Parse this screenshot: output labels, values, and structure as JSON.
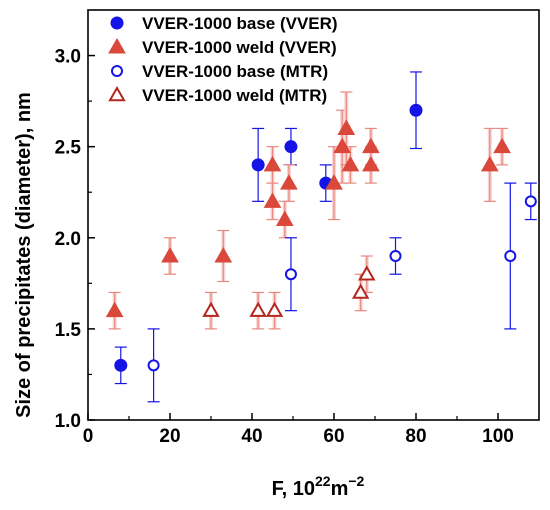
{
  "chart_data": {
    "type": "scatter",
    "xlabel": "F, 10",
    "xlabel_sup": "22",
    "xlabel_unit": "m",
    "xlabel_unit_sup": "−2",
    "ylabel": "Size of precipitates (diameter), nm",
    "xlim": [
      0,
      110
    ],
    "ylim": [
      1.0,
      3.25
    ],
    "xticks": [
      "0",
      "20",
      "40",
      "60",
      "80",
      "100"
    ],
    "xtick_values": [
      0,
      20,
      40,
      60,
      80,
      100
    ],
    "yticks": [
      "1.0",
      "1.5",
      "2.0",
      "2.5",
      "3.0"
    ],
    "ytick_values": [
      1.0,
      1.5,
      2.0,
      2.5,
      3.0
    ],
    "grid": false,
    "legend_position": "top-left",
    "series": [
      {
        "name": "VVER-1000 base (VVER)",
        "marker": "circle-filled",
        "color": "#1414e6",
        "points": [
          {
            "x": 8,
            "y": 1.3,
            "err": 0.1
          },
          {
            "x": 41.5,
            "y": 2.4,
            "err": 0.2
          },
          {
            "x": 49.5,
            "y": 2.5,
            "err": 0.1
          },
          {
            "x": 58,
            "y": 2.3,
            "err": 0.1
          },
          {
            "x": 80,
            "y": 2.7,
            "err": 0.21
          }
        ]
      },
      {
        "name": "VVER-1000 weld (VVER)",
        "marker": "triangle-filled",
        "color": "#d9483a",
        "points": [
          {
            "x": 6.5,
            "y": 1.6,
            "err": 0.1
          },
          {
            "x": 20,
            "y": 1.9,
            "err": 0.1
          },
          {
            "x": 33,
            "y": 1.9,
            "err": 0.14
          },
          {
            "x": 45,
            "y": 2.4,
            "err": 0.1
          },
          {
            "x": 45,
            "y": 2.2,
            "err": 0.1
          },
          {
            "x": 48,
            "y": 2.1,
            "err": 0.1
          },
          {
            "x": 49,
            "y": 2.3,
            "err": 0.1
          },
          {
            "x": 60,
            "y": 2.3,
            "err": 0.2
          },
          {
            "x": 62,
            "y": 2.5,
            "err": 0.2
          },
          {
            "x": 63,
            "y": 2.6,
            "err": 0.2
          },
          {
            "x": 64,
            "y": 2.4,
            "err": 0.1
          },
          {
            "x": 69,
            "y": 2.5,
            "err": 0.1
          },
          {
            "x": 69,
            "y": 2.4,
            "err": 0.1
          },
          {
            "x": 98,
            "y": 2.4,
            "err": 0.2
          },
          {
            "x": 101,
            "y": 2.5,
            "err": 0.1
          }
        ]
      },
      {
        "name": "VVER-1000 base (MTR)",
        "marker": "circle-open",
        "color": "#1414e6",
        "points": [
          {
            "x": 16,
            "y": 1.3,
            "err": 0.2
          },
          {
            "x": 49.5,
            "y": 1.8,
            "err": 0.2
          },
          {
            "x": 75,
            "y": 1.9,
            "err": 0.1
          },
          {
            "x": 103,
            "y": 1.9,
            "err": 0.4
          },
          {
            "x": 108,
            "y": 2.2,
            "err": 0.1
          }
        ]
      },
      {
        "name": "VVER-1000 weld (MTR)",
        "marker": "triangle-open",
        "color": "#b3261e",
        "points": [
          {
            "x": 30,
            "y": 1.6,
            "err": 0.1
          },
          {
            "x": 41.5,
            "y": 1.6,
            "err": 0.1
          },
          {
            "x": 45.5,
            "y": 1.6,
            "err": 0.1
          },
          {
            "x": 66.5,
            "y": 1.7,
            "err": 0.1
          },
          {
            "x": 68,
            "y": 1.8,
            "err": 0.1
          }
        ]
      }
    ]
  }
}
